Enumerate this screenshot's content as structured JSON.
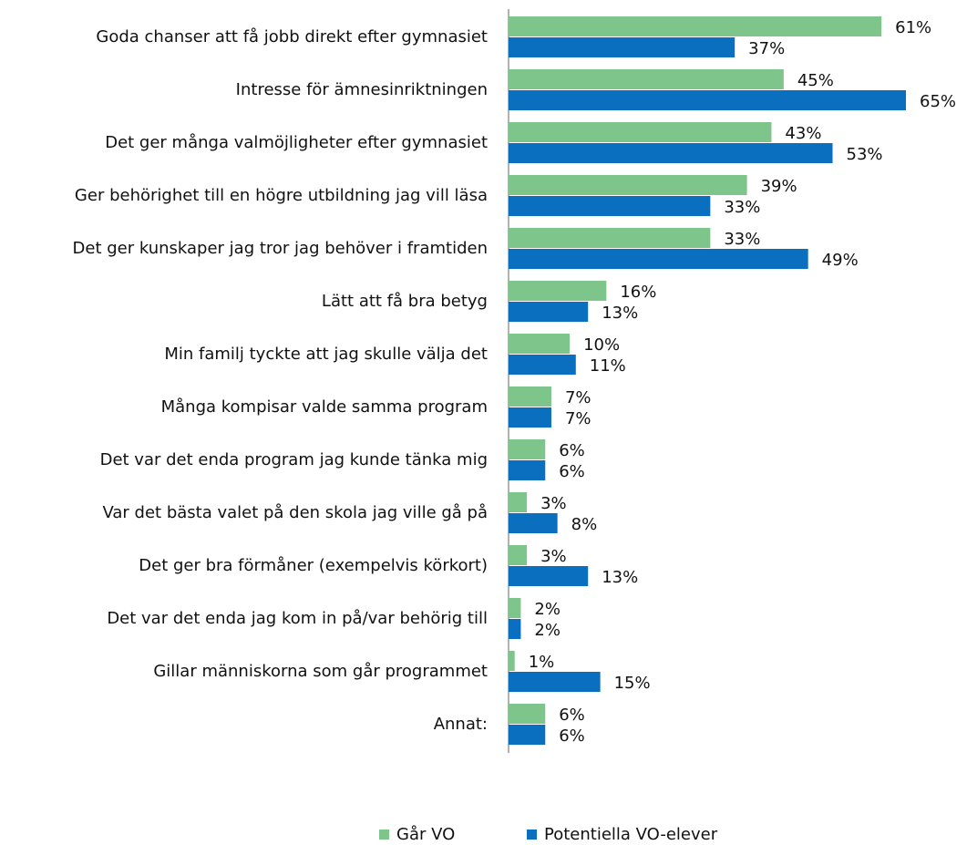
{
  "chart_data": {
    "type": "barh",
    "categories": [
      "Goda chanser att få jobb direkt efter gymnasiet",
      "Intresse för ämnesinriktningen",
      "Det ger många valmöjligheter efter gymnasiet",
      "Ger behörighet till en högre utbildning jag vill läsa",
      "Det ger kunskaper jag tror jag behöver i framtiden",
      "Lätt att få bra betyg",
      "Min familj tyckte att jag skulle välja det",
      "Många kompisar valde samma program",
      "Det var det enda program jag kunde tänka mig",
      "Var det bästa valet på den skola jag ville gå på",
      "Det ger bra förmåner (exempelvis körkort)",
      "Det var det enda jag kom in på/var behörig till",
      "Gillar människorna som går programmet",
      "Annat:"
    ],
    "series": [
      {
        "name": "Går VO",
        "color": "#7dc58a",
        "values": [
          61,
          45,
          43,
          39,
          33,
          16,
          10,
          7,
          6,
          3,
          3,
          2,
          1,
          6
        ],
        "value_labels": [
          "61%",
          "45%",
          "43%",
          "39%",
          "33%",
          "16%",
          "10%",
          "7%",
          "6%",
          "3%",
          "3%",
          "2%",
          "1%",
          "6%"
        ]
      },
      {
        "name": "Potentiella VO-elever",
        "color": "#0a6fbe",
        "values": [
          37,
          65,
          53,
          33,
          49,
          13,
          11,
          7,
          6,
          8,
          13,
          2,
          15,
          6
        ],
        "value_labels": [
          "37%",
          "65%",
          "53%",
          "33%",
          "49%",
          "13%",
          "11%",
          "7%",
          "6%",
          "8%",
          "13%",
          "2%",
          "15%",
          "6%"
        ]
      }
    ],
    "xlim": [
      0,
      65
    ],
    "legend": "bottom"
  }
}
